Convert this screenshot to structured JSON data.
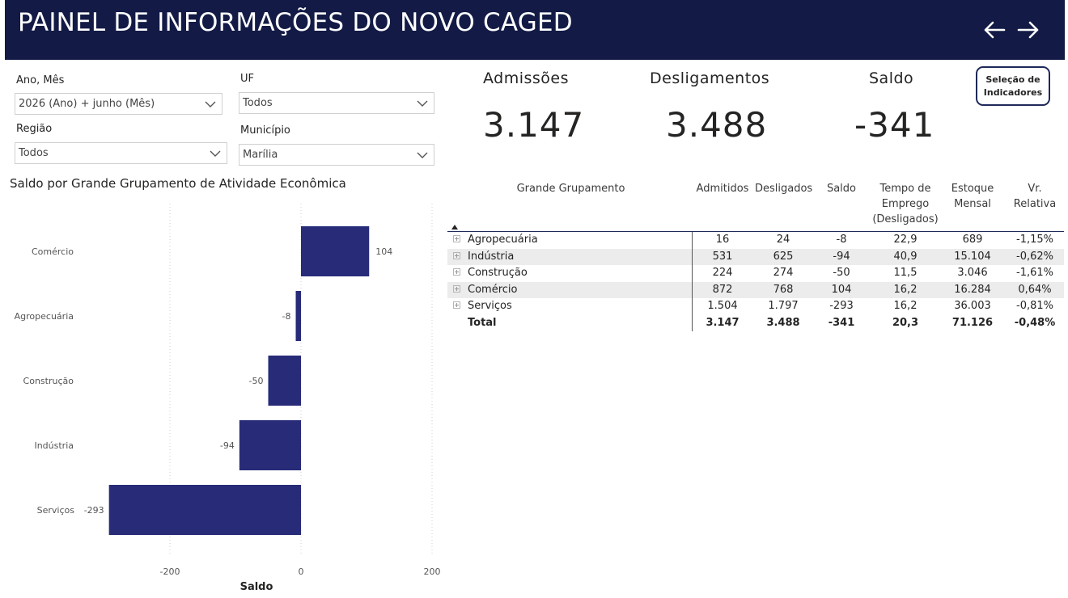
{
  "header": {
    "title": "PAINEL DE INFORMAÇÕES DO NOVO CAGED",
    "nav_back_icon": "arrow-left-icon",
    "nav_forward_icon": "arrow-right-icon"
  },
  "filters": {
    "ano_mes": {
      "label": "Ano, Mês",
      "value": "2026 (Ano) + junho (Mês)"
    },
    "uf": {
      "label": "UF",
      "value": "Todos"
    },
    "regiao": {
      "label": "Região",
      "value": "Todos"
    },
    "municipio": {
      "label": "Município",
      "value": "Marília"
    }
  },
  "kpis": {
    "admissoes": {
      "label": "Admissões",
      "value": "3.147"
    },
    "desligamentos": {
      "label": "Desligamentos",
      "value": "3.488"
    },
    "saldo": {
      "label": "Saldo",
      "value": "-341"
    }
  },
  "selection_button": {
    "line1": "Seleção de",
    "line2": "Indicadores"
  },
  "chart_data": {
    "type": "bar",
    "orientation": "horizontal",
    "title": "Saldo por Grande Grupamento de Atividade Econômica",
    "xlabel": "Saldo",
    "ylabel": "",
    "categories": [
      "Comércio",
      "Agropecuária",
      "Construção",
      "Indústria",
      "Serviços"
    ],
    "values": [
      104,
      -8,
      -50,
      -94,
      -293
    ],
    "value_labels": [
      "104",
      "-8",
      "-50",
      "-94",
      "-293"
    ],
    "xlim": [
      -300,
      200
    ],
    "xticks": [
      -200,
      0,
      200
    ],
    "xtick_labels": [
      "-200",
      "0",
      "200"
    ],
    "gridlines": true,
    "bar_color": "#272b78"
  },
  "table": {
    "columns": [
      "Grande Grupamento",
      "Admitidos",
      "Desligados",
      "Saldo",
      "Tempo de Emprego (Desligados)",
      "Estoque Mensal",
      "Vr. Relativa"
    ],
    "column_lines": {
      "tempo": [
        "Tempo de",
        "Emprego",
        "(Desligados)"
      ],
      "estoque": [
        "Estoque",
        "Mensal"
      ],
      "vr": [
        "Vr.",
        "Relativa"
      ]
    },
    "rows": [
      {
        "name": "Agropecuária",
        "admitidos": "16",
        "desligados": "24",
        "saldo": "-8",
        "tempo": "22,9",
        "estoque": "689",
        "vr": "-1,15%"
      },
      {
        "name": "Indústria",
        "admitidos": "531",
        "desligados": "625",
        "saldo": "-94",
        "tempo": "40,9",
        "estoque": "15.104",
        "vr": "-0,62%"
      },
      {
        "name": "Construção",
        "admitidos": "224",
        "desligados": "274",
        "saldo": "-50",
        "tempo": "11,5",
        "estoque": "3.046",
        "vr": "-1,61%"
      },
      {
        "name": "Comércio",
        "admitidos": "872",
        "desligados": "768",
        "saldo": "104",
        "tempo": "16,2",
        "estoque": "16.284",
        "vr": "0,64%"
      },
      {
        "name": "Serviços",
        "admitidos": "1.504",
        "desligados": "1.797",
        "saldo": "-293",
        "tempo": "16,2",
        "estoque": "36.003",
        "vr": "-0,81%"
      }
    ],
    "total": {
      "name": "Total",
      "admitidos": "3.147",
      "desligados": "3.488",
      "saldo": "-341",
      "tempo": "20,3",
      "estoque": "71.126",
      "vr": "-0,48%"
    }
  },
  "colors": {
    "header_bg": "#121a45",
    "bar": "#272b78",
    "row_alt": "#ececec"
  }
}
